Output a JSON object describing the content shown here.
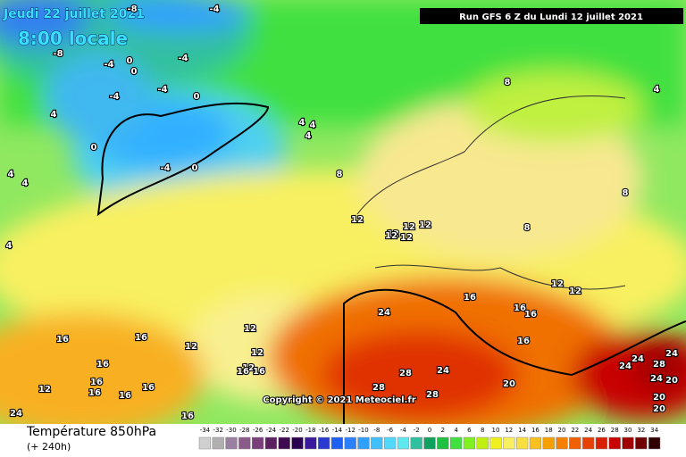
{
  "header": {
    "forecast_date": "Jeudi 22 juillet 2021",
    "local_time": "8:00 locale",
    "run": "Run GFS 6 Z du Lundi 12 juillet 2021"
  },
  "footer": {
    "copyright": "Copyright © 2021 Meteociel.fr",
    "title": "Température 850hPa",
    "lead_time": "(+ 240h)"
  },
  "contour_labels": [
    "-8",
    "-4",
    "-8",
    "-4",
    "0",
    "-4",
    "0",
    "-4",
    "0",
    "-4",
    "4",
    "4",
    "4",
    "0",
    "-4",
    "0",
    "4",
    "4",
    "4",
    "8",
    "4",
    "8",
    "4",
    "8",
    "12",
    "12",
    "12",
    "12",
    "12",
    "12",
    "8",
    "16",
    "16",
    "16",
    "12",
    "12",
    "12",
    "12",
    "12",
    "12",
    "16",
    "16",
    "16",
    "16",
    "16",
    "16",
    "16",
    "12",
    "16",
    "16",
    "16",
    "24",
    "16",
    "24",
    "28",
    "24",
    "28",
    "28",
    "20",
    "24",
    "24",
    "28",
    "20",
    "24",
    "20",
    "20",
    "24"
  ],
  "scale": {
    "labels": [
      "-34",
      "-32",
      "-30",
      "-28",
      "-26",
      "-24",
      "-22",
      "-20",
      "-18",
      "-16",
      "-14",
      "-12",
      "-10",
      "-8",
      "-6",
      "-4",
      "-2",
      "0",
      "2",
      "4",
      "6",
      "8",
      "10",
      "12",
      "14",
      "16",
      "18",
      "20",
      "22",
      "24",
      "26",
      "28",
      "30",
      "32",
      "34"
    ],
    "colors": [
      "#d0d0d0",
      "#b0b0b0",
      "#9a7fa0",
      "#8a5a8a",
      "#7a3f7a",
      "#5a2060",
      "#400a50",
      "#2a0050",
      "#3a1a9a",
      "#2a3ad0",
      "#2060f0",
      "#2a80ff",
      "#30a0ff",
      "#40c0ff",
      "#50d8ff",
      "#60e8f0",
      "#30c0a0",
      "#10a060",
      "#20c040",
      "#40e040",
      "#80f020",
      "#c0f010",
      "#f0f020",
      "#f8f060",
      "#f8e040",
      "#f8c020",
      "#f8a000",
      "#f88000",
      "#f06000",
      "#e84000",
      "#d82000",
      "#c80000",
      "#a00000",
      "#700000",
      "#300000"
    ]
  }
}
